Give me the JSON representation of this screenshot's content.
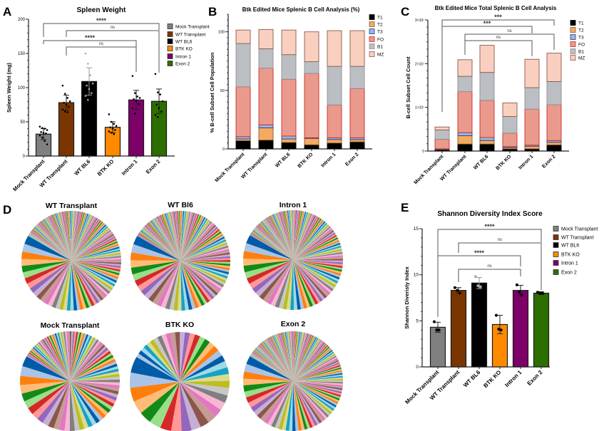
{
  "panel_letters": [
    "A",
    "B",
    "C",
    "D",
    "E"
  ],
  "chart_data": [
    {
      "panel": "A",
      "type": "bar",
      "title": "Spleen Weight",
      "ylabel": "Spleen Weight (mg)",
      "xlabel": "",
      "ylim": [
        0,
        200
      ],
      "yticks": [
        "0",
        "50",
        "100",
        "150",
        "200"
      ],
      "categories": [
        "Mock Transplant",
        "WT Transplant",
        "WT BL6",
        "BTK KO",
        "Intron 1",
        "Exon 2"
      ],
      "values": [
        32,
        78,
        109,
        42,
        82,
        80
      ],
      "errors": [
        8,
        11,
        20,
        8,
        14,
        18
      ],
      "points": [
        [
          43,
          41,
          40,
          38,
          35,
          34,
          33,
          30,
          27,
          22,
          17
        ],
        [
          103,
          91,
          85,
          80,
          78,
          75,
          72,
          68,
          65,
          64
        ],
        [
          150,
          135,
          118,
          106,
          103,
          98,
          92,
          88,
          82
        ],
        [
          61,
          50,
          47,
          44,
          42,
          40,
          38,
          36,
          34,
          32
        ],
        [
          117,
          92,
          87,
          85,
          83,
          80,
          76,
          70,
          62
        ],
        [
          120,
          93,
          90,
          80,
          75,
          70,
          65,
          60,
          57
        ]
      ],
      "colors": [
        "#808080",
        "#7a3500",
        "#000000",
        "#ff8a00",
        "#7d0068",
        "#2c6e00"
      ],
      "legend": [
        "Mock Transplant",
        "WT Transplant",
        "WT BL6",
        "BTK KO",
        "Intron 1",
        "Exon 2"
      ],
      "legend_position": "right",
      "comparisons": [
        {
          "from": 0,
          "to": 5,
          "label": "****"
        },
        {
          "from": 1,
          "to": 5,
          "label": "ns"
        },
        {
          "from": 0,
          "to": 4,
          "label": "****"
        },
        {
          "from": 1,
          "to": 4,
          "label": "ns"
        }
      ]
    },
    {
      "panel": "B",
      "type": "bar",
      "stacked": true,
      "title": "Btk Edited Mice Splenic B Cell Analysis (%)",
      "ylabel": "% B-cell Subset Cell Population",
      "ylim": [
        0,
        115
      ],
      "yticks": [
        "0",
        "50",
        "100"
      ],
      "categories": [
        "Mock Transplant",
        "WT Transplant",
        "WT BL6",
        "BTK KO",
        "Intron 1",
        "Exon 2"
      ],
      "series": [
        {
          "name": "T1",
          "values": [
            7,
            7.5,
            5.5,
            3.5,
            5,
            6
          ]
        },
        {
          "name": "T2",
          "values": [
            1.5,
            10.5,
            3,
            5.5,
            3,
            2
          ]
        },
        {
          "name": "T3",
          "values": [
            2,
            2.5,
            2.5,
            0.5,
            1.5,
            1.5
          ]
        },
        {
          "name": "FO",
          "values": [
            42.5,
            48.5,
            48.5,
            55,
            28,
            42
          ]
        },
        {
          "name": "B1",
          "values": [
            37,
            16.5,
            21,
            10,
            33,
            19
          ]
        },
        {
          "name": "MZ",
          "values": [
            11.5,
            16.5,
            21,
            25.5,
            30.5,
            30.5
          ]
        }
      ],
      "series_colors": [
        "#000000",
        "#f5aa62",
        "#9cb6e0",
        "#ea9a8c",
        "#bbbec2",
        "#f9cfc0"
      ],
      "series_borders": [
        "#000000",
        "#8a5a2a",
        "#1f3f8a",
        "#d02a2a",
        "#8e9094",
        "#8a5a4a"
      ],
      "legend_position": "right"
    },
    {
      "panel": "C",
      "type": "bar",
      "stacked": true,
      "title": "Btk Edited Mice Total Splenic B Cell Analysis",
      "ylabel": "B-cell Subset Cell Count",
      "ylim": [
        0,
        30000000
      ],
      "yticks": [
        "0",
        "1×10⁷",
        "2×10⁷",
        "3×10⁷"
      ],
      "categories": [
        "Mock Transplant",
        "WT Transplant",
        "WT BL6",
        "BTK KO",
        "Intron 1",
        "Exon 2"
      ],
      "series": [
        {
          "name": "T1",
          "values": [
            300000,
            1600000,
            1600000,
            500000,
            500000,
            1400000
          ]
        },
        {
          "name": "T2",
          "values": [
            100000,
            1900000,
            800000,
            300000,
            600000,
            600000
          ]
        },
        {
          "name": "T3",
          "values": [
            100000,
            700000,
            700000,
            200000,
            250000,
            400000
          ]
        },
        {
          "name": "FO",
          "values": [
            2200000,
            9400000,
            8500000,
            3100000,
            8250000,
            8200000
          ]
        },
        {
          "name": "B1",
          "values": [
            2100000,
            3500000,
            6400000,
            3800000,
            4900000,
            5300000
          ]
        },
        {
          "name": "MZ",
          "values": [
            700000,
            3800000,
            6200000,
            3100000,
            6500000,
            6500000
          ]
        }
      ],
      "series_colors": [
        "#000000",
        "#f5aa62",
        "#9cb6e0",
        "#ea9a8c",
        "#bbbec2",
        "#f9cfc0"
      ],
      "series_borders": [
        "#000000",
        "#8a5a2a",
        "#1f3f8a",
        "#d02a2a",
        "#8e9094",
        "#8a5a4a"
      ],
      "legend_position": "right",
      "comparisons": [
        {
          "from": 0,
          "to": 5,
          "label": "***"
        },
        {
          "from": 0,
          "to": 4,
          "label": "***"
        },
        {
          "from": 1,
          "to": 5,
          "label": "ns"
        },
        {
          "from": 1,
          "to": 4,
          "label": "ns"
        }
      ]
    },
    {
      "panel": "D",
      "type": "pie",
      "pies": [
        {
          "title": "WT Transplant",
          "estimated_slice_count": 200
        },
        {
          "title": "WT Bl6",
          "estimated_slice_count": 170
        },
        {
          "title": "Intron 1",
          "estimated_slice_count": 190
        },
        {
          "title": "Mock Transplant",
          "estimated_slice_count": 110
        },
        {
          "title": "BTK KO",
          "estimated_slice_count": 42
        },
        {
          "title": "Exon 2",
          "estimated_slice_count": 220
        }
      ],
      "palette": [
        "#005ca8",
        "#a9c4e6",
        "#ff7f0e",
        "#ffbb78",
        "#138a17",
        "#98df8a",
        "#d62728",
        "#ff9896",
        "#9467bd",
        "#c5b0d5",
        "#8c564b",
        "#c49c94",
        "#e377c2",
        "#f7b6d2",
        "#7f7f7f",
        "#c7c7c7",
        "#bcbd22",
        "#dbdb8d",
        "#17a1c5",
        "#9edae5"
      ]
    },
    {
      "panel": "E",
      "type": "bar",
      "title": "Shannon Diversity Index Score",
      "ylabel": "Shannon Diveristy Index",
      "ylim": [
        0,
        15
      ],
      "yticks": [
        "0",
        "5",
        "10",
        "15"
      ],
      "categories": [
        "Mock Transplant",
        "WT Transplant",
        "WT BL6",
        "BTK KO",
        "Intron 1",
        "Exon 2"
      ],
      "values": [
        4.3,
        8.3,
        9.1,
        4.6,
        8.3,
        8.0
      ],
      "errors": [
        0.55,
        0.3,
        0.6,
        1.0,
        0.55,
        0.15
      ],
      "points": [
        [
          4.9,
          4.0,
          4.0
        ],
        [
          8.6,
          8.3,
          8.0
        ],
        [
          9.8,
          8.8,
          8.7
        ],
        [
          5.6,
          4.1,
          4.0
        ],
        [
          8.9,
          8.1,
          7.8
        ],
        [
          8.1,
          8.0,
          8.0
        ]
      ],
      "colors": [
        "#808080",
        "#7a3500",
        "#000000",
        "#ff8a00",
        "#7d0068",
        "#2c6e00"
      ],
      "legend": [
        "Mock Transplant",
        "WT Transplant",
        "WT BL6",
        "BTK KO",
        "Intron 1",
        "Exon 2"
      ],
      "legend_position": "right",
      "comparisons": [
        {
          "from": 0,
          "to": 5,
          "label": "****"
        },
        {
          "from": 1,
          "to": 5,
          "label": "ns"
        },
        {
          "from": 0,
          "to": 4,
          "label": "****"
        },
        {
          "from": 1,
          "to": 4,
          "label": "ns"
        }
      ]
    }
  ]
}
